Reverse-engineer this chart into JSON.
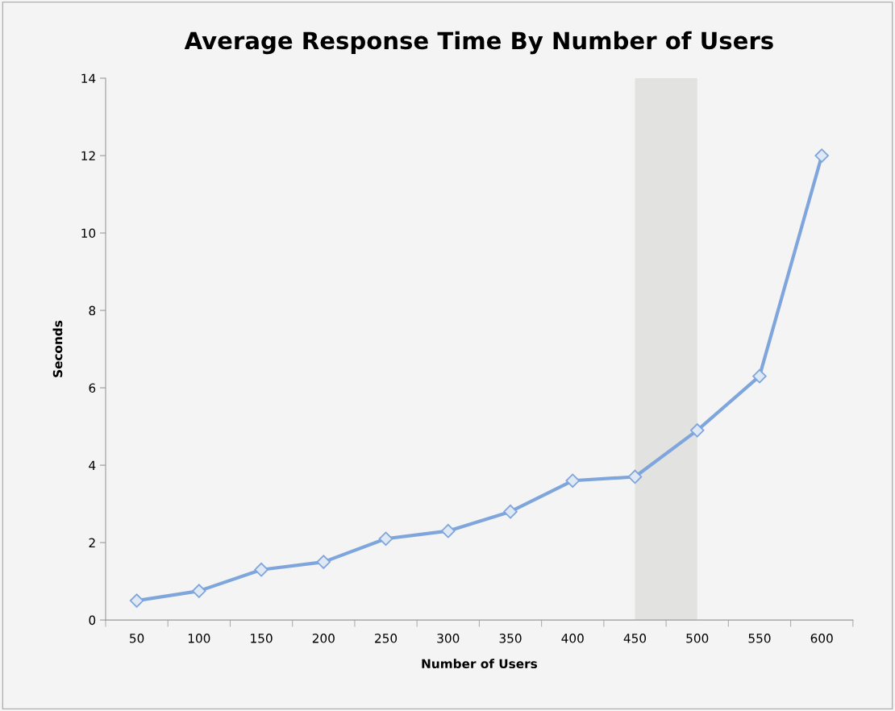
{
  "chart_data": {
    "type": "line",
    "title": "Average Response Time By Number of Users",
    "xlabel": "Number of Users",
    "ylabel": "Seconds",
    "categories": [
      "50",
      "100",
      "150",
      "200",
      "250",
      "300",
      "350",
      "400",
      "450",
      "500",
      "550",
      "600"
    ],
    "series": [
      {
        "color": "#7fa6dc",
        "values": [
          0.5,
          0.75,
          1.3,
          1.5,
          2.1,
          2.3,
          2.8,
          3.6,
          3.7,
          4.9,
          6.3,
          12.0
        ]
      }
    ],
    "ylim": [
      0,
      14
    ],
    "yticks": [
      0,
      2,
      4,
      6,
      8,
      10,
      12,
      14
    ],
    "bands": [
      {
        "axis": "x",
        "from": "450",
        "to": "500",
        "color": "#e2e2e0"
      }
    ],
    "marker": "diamond",
    "line_style": "solid",
    "grid": false,
    "legend": false
  }
}
